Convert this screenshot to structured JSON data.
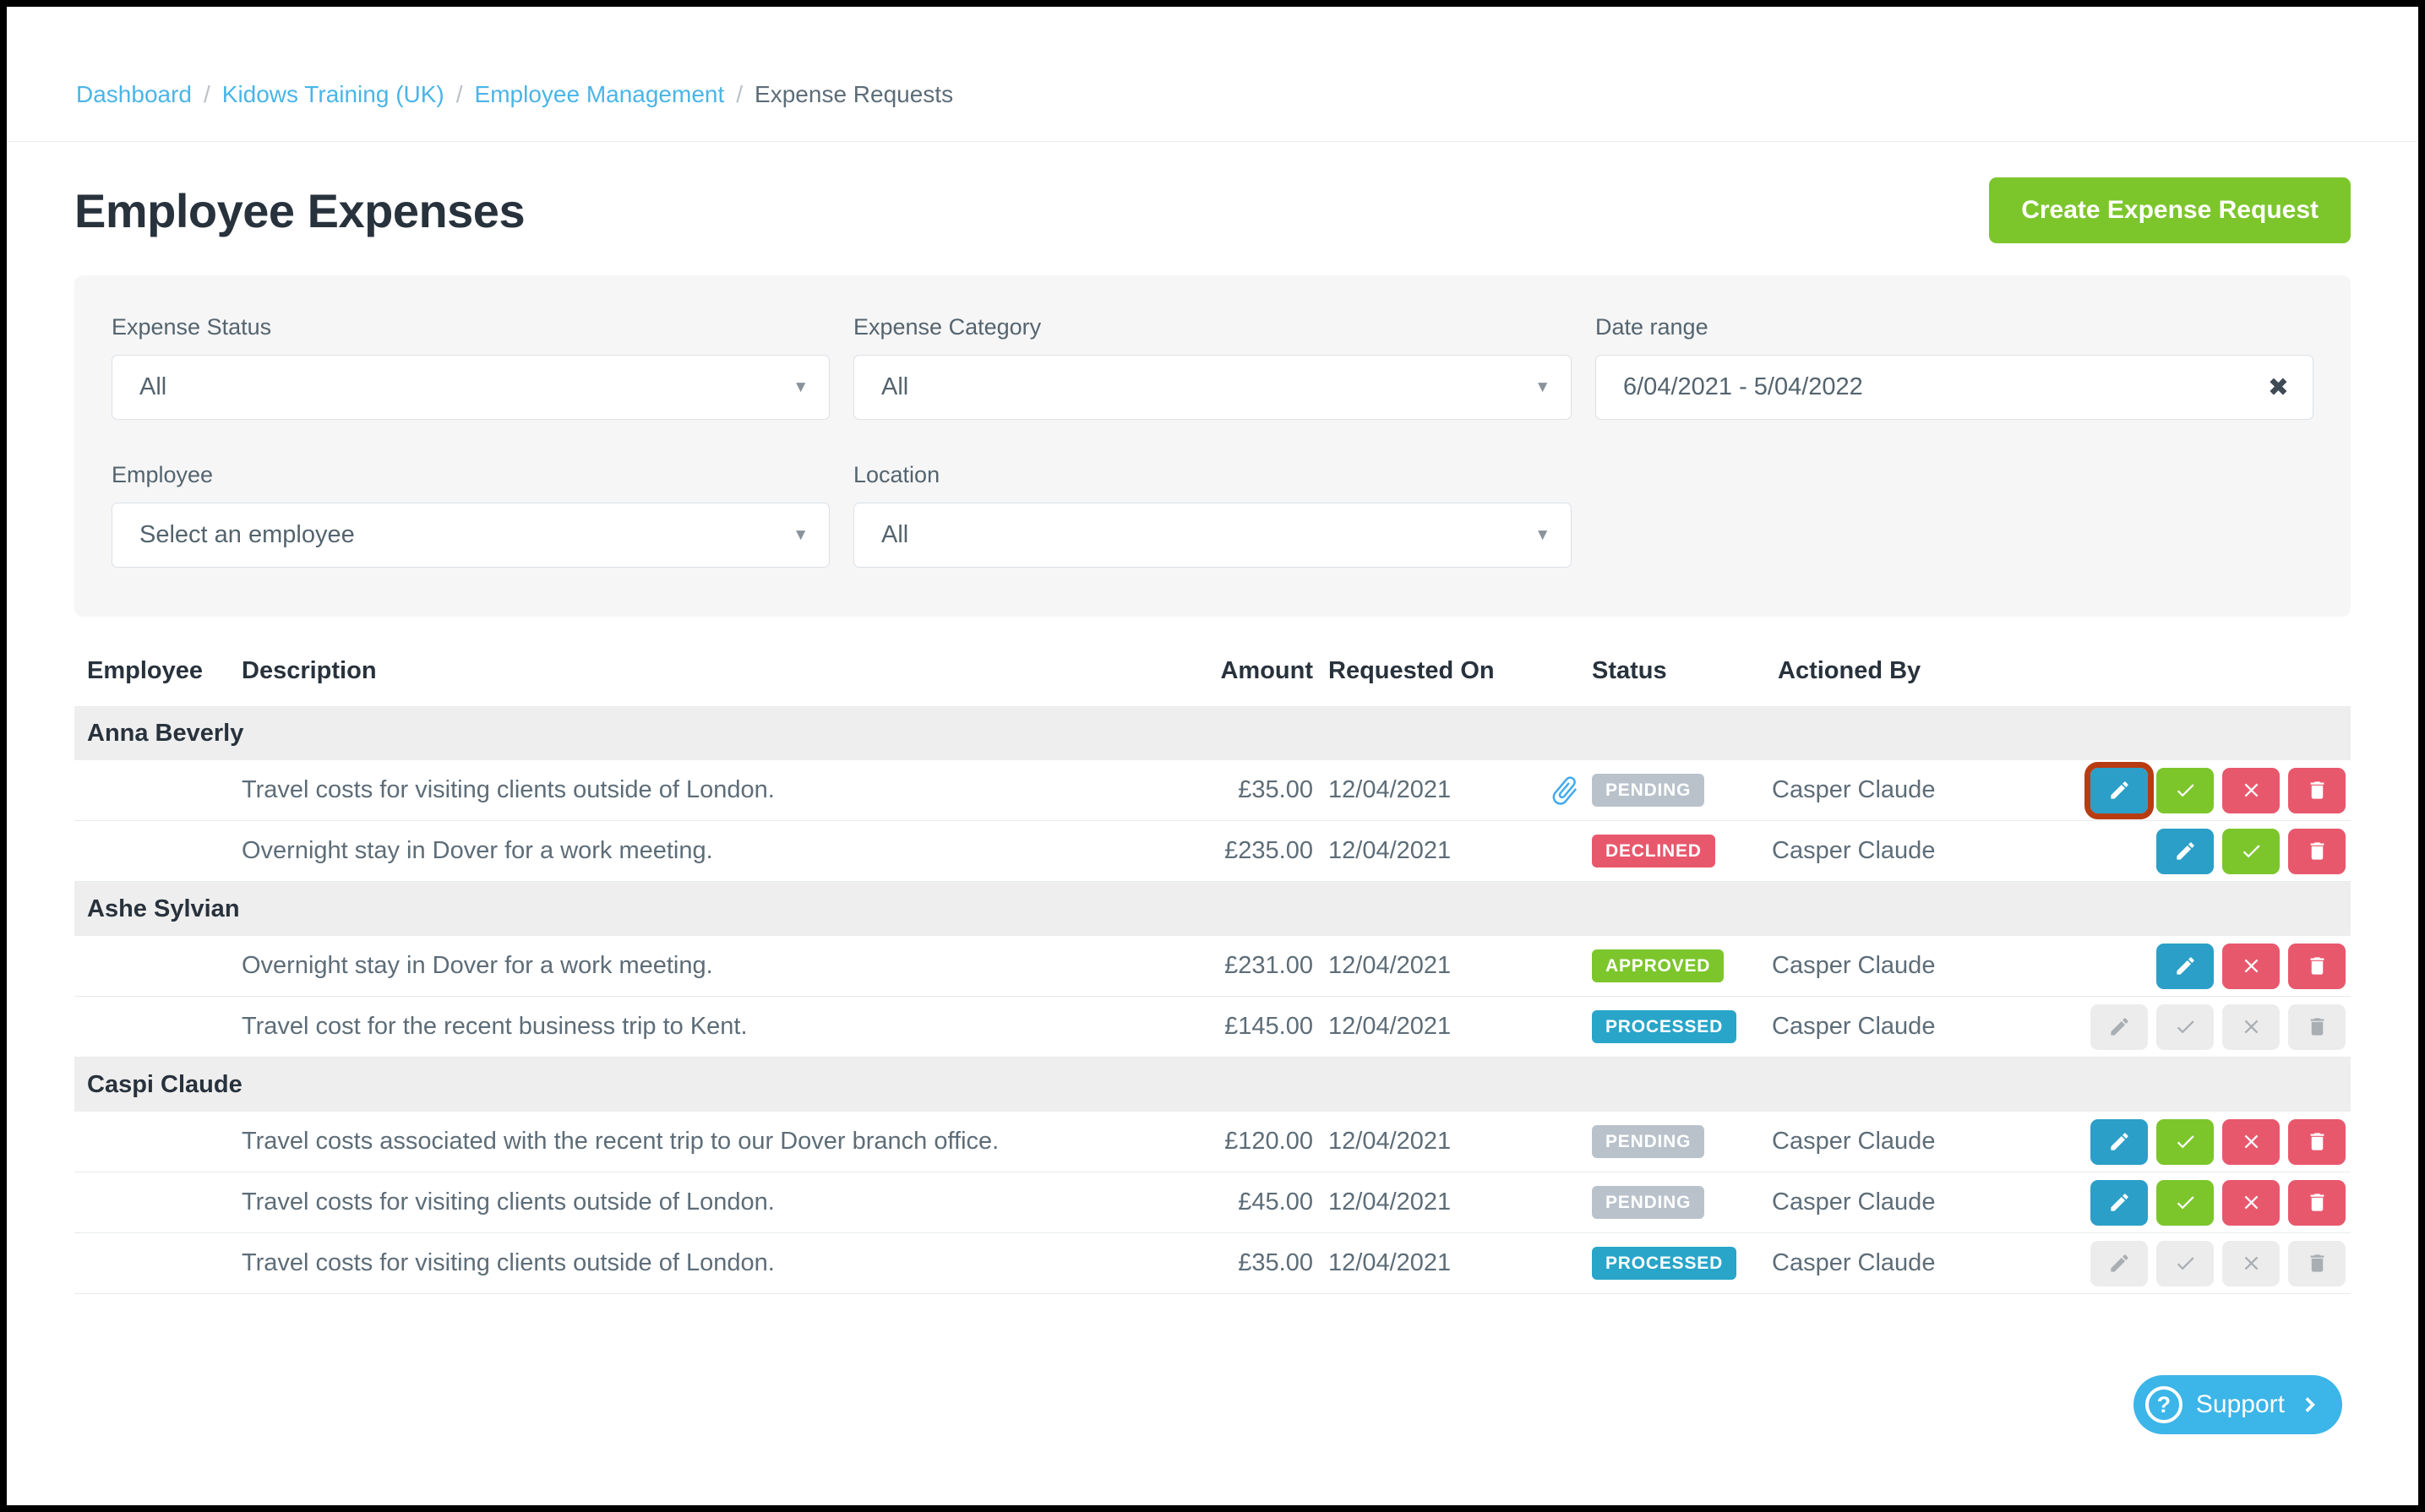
{
  "breadcrumb": {
    "separator": "/",
    "items": [
      {
        "label": "Dashboard"
      },
      {
        "label": "Kidows Training (UK)"
      },
      {
        "label": "Employee Management"
      },
      {
        "label": "Expense Requests"
      }
    ]
  },
  "page": {
    "title": "Employee Expenses",
    "create_button_label": "Create Expense Request"
  },
  "filters": {
    "expense_status": {
      "label": "Expense Status",
      "value": "All"
    },
    "expense_category": {
      "label": "Expense Category",
      "value": "All"
    },
    "date_range": {
      "label": "Date range",
      "value": "6/04/2021 - 5/04/2022",
      "clear_icon": "✖"
    },
    "employee": {
      "label": "Employee",
      "value": "Select an employee"
    },
    "location": {
      "label": "Location",
      "value": "All"
    }
  },
  "table": {
    "headers": {
      "employee": "Employee",
      "description": "Description",
      "amount": "Amount",
      "requested_on": "Requested On",
      "status": "Status",
      "actioned_by": "Actioned By"
    },
    "groups": [
      {
        "employee": "Anna Beverly",
        "rows": [
          {
            "description": "Travel costs for visiting clients outside of London.",
            "amount": "£35.00",
            "requested_on": "12/04/2021",
            "has_attachment": true,
            "status": "PENDING",
            "status_style": "pending",
            "actioned_by": "Casper Claude",
            "actions": [
              {
                "name": "edit",
                "highlighted": true
              },
              {
                "name": "approve"
              },
              {
                "name": "decline"
              },
              {
                "name": "delete"
              }
            ]
          },
          {
            "description": "Overnight stay in Dover for a work meeting.",
            "amount": "£235.00",
            "requested_on": "12/04/2021",
            "has_attachment": false,
            "status": "DECLINED",
            "status_style": "declined",
            "actioned_by": "Casper Claude",
            "actions": [
              {
                "name": "edit"
              },
              {
                "name": "approve"
              },
              {
                "name": "delete"
              }
            ]
          }
        ]
      },
      {
        "employee": "Ashe Sylvian",
        "rows": [
          {
            "description": "Overnight stay in Dover for a work meeting.",
            "amount": "£231.00",
            "requested_on": "12/04/2021",
            "has_attachment": false,
            "status": "APPROVED",
            "status_style": "approved",
            "actioned_by": "Casper Claude",
            "actions": [
              {
                "name": "edit"
              },
              {
                "name": "decline"
              },
              {
                "name": "delete"
              }
            ]
          },
          {
            "description": "Travel cost for the recent business trip to Kent.",
            "amount": "£145.00",
            "requested_on": "12/04/2021",
            "has_attachment": false,
            "status": "PROCESSED",
            "status_style": "processed",
            "actioned_by": "Casper Claude",
            "actions": [
              {
                "name": "edit",
                "disabled": true
              },
              {
                "name": "approve",
                "disabled": true
              },
              {
                "name": "decline",
                "disabled": true
              },
              {
                "name": "delete",
                "disabled": true
              }
            ]
          }
        ]
      },
      {
        "employee": "Caspi Claude",
        "rows": [
          {
            "description": "Travel costs associated with the recent trip to our Dover branch office.",
            "amount": "£120.00",
            "requested_on": "12/04/2021",
            "has_attachment": false,
            "status": "PENDING",
            "status_style": "pending",
            "actioned_by": "Casper Claude",
            "actions": [
              {
                "name": "edit"
              },
              {
                "name": "approve"
              },
              {
                "name": "decline"
              },
              {
                "name": "delete"
              }
            ]
          },
          {
            "description": "Travel costs for visiting clients outside of London.",
            "amount": "£45.00",
            "requested_on": "12/04/2021",
            "has_attachment": false,
            "status": "PENDING",
            "status_style": "pending",
            "actioned_by": "Casper Claude",
            "actions": [
              {
                "name": "edit"
              },
              {
                "name": "approve"
              },
              {
                "name": "decline"
              },
              {
                "name": "delete"
              }
            ]
          },
          {
            "description": "Travel costs for visiting clients outside of London.",
            "amount": "£35.00",
            "requested_on": "12/04/2021",
            "has_attachment": false,
            "status": "PROCESSED",
            "status_style": "processed",
            "actioned_by": "Casper Claude",
            "actions": [
              {
                "name": "edit",
                "disabled": true
              },
              {
                "name": "approve",
                "disabled": true
              },
              {
                "name": "decline",
                "disabled": true
              },
              {
                "name": "delete",
                "disabled": true
              }
            ]
          }
        ]
      }
    ]
  },
  "support": {
    "label": "Support"
  },
  "colors": {
    "link-blue": "#4ab5e8",
    "brand-green": "#7cc62c",
    "badge-pending": "#b9c2cb",
    "badge-declined": "#e8586d",
    "badge-approved": "#7cc62c",
    "badge-processed": "#28a5c9",
    "btn-edit": "#2b9fc7",
    "btn-approve": "#7cc62c",
    "btn-decline": "#e8586d",
    "btn-delete": "#e8586d",
    "btn-disabled-bg": "#ececec",
    "btn-disabled-icon": "#a9aeb3",
    "highlight": "#b83c12",
    "attachment-blue": "#42aaee",
    "support-blue": "#3cb5e8",
    "text-dark": "#28323c",
    "text-body": "#5d6d78"
  }
}
